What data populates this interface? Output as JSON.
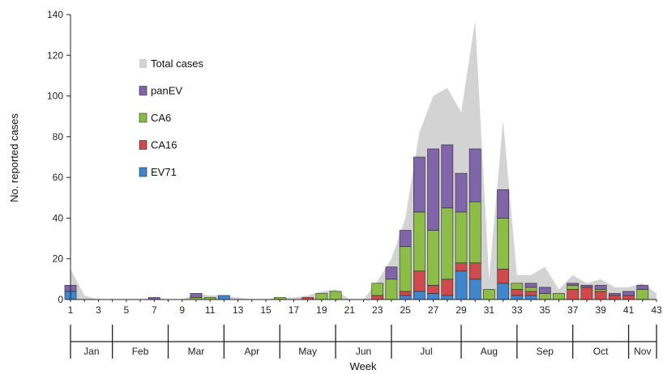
{
  "chart_data": {
    "type": "bar",
    "title": "",
    "xlabel": "Week",
    "ylabel": "No. reported cases",
    "ylim": [
      0,
      140
    ],
    "y_ticks": [
      0,
      20,
      40,
      60,
      80,
      100,
      120,
      140
    ],
    "xlim": [
      1,
      43
    ],
    "x_tick_labels": [
      "1",
      "3",
      "5",
      "7",
      "9",
      "11",
      "13",
      "15",
      "17",
      "19",
      "21",
      "23",
      "25",
      "27",
      "29",
      "31",
      "33",
      "35",
      "37",
      "39",
      "41",
      "43"
    ],
    "legend_placement": "upper-left",
    "legend": [
      "Total cases",
      "panEV",
      "CA6",
      "CA16",
      "EV71"
    ],
    "colors": {
      "total": "#d3d3d3",
      "panEV": "#8065a9",
      "CA6": "#8cbd47",
      "CA16": "#d04a4c",
      "EV71": "#3f86cc"
    },
    "months": [
      {
        "label": "Jan",
        "start": 1,
        "end": 4
      },
      {
        "label": "Feb",
        "start": 4,
        "end": 8
      },
      {
        "label": "Mar",
        "start": 8,
        "end": 12
      },
      {
        "label": "Apr",
        "start": 12,
        "end": 16
      },
      {
        "label": "May",
        "start": 16,
        "end": 20
      },
      {
        "label": "Jun",
        "start": 20,
        "end": 24
      },
      {
        "label": "Jul",
        "start": 24,
        "end": 29
      },
      {
        "label": "Aug",
        "start": 29,
        "end": 33
      },
      {
        "label": "Sep",
        "start": 33,
        "end": 37
      },
      {
        "label": "Oct",
        "start": 37,
        "end": 41
      },
      {
        "label": "Nov",
        "start": 41,
        "end": 43
      }
    ],
    "weeks": [
      1,
      2,
      3,
      4,
      5,
      6,
      7,
      8,
      9,
      10,
      11,
      12,
      13,
      14,
      15,
      16,
      17,
      18,
      19,
      20,
      21,
      22,
      23,
      24,
      25,
      26,
      27,
      28,
      29,
      30,
      31,
      32,
      33,
      34,
      35,
      36,
      37,
      38,
      39,
      40,
      41,
      42,
      43
    ],
    "series": [
      {
        "name": "EV71",
        "values": [
          4,
          0,
          0,
          0,
          0,
          0,
          0,
          0,
          0,
          0,
          0,
          2,
          0,
          0,
          0,
          0,
          0,
          0,
          0,
          0,
          0,
          0,
          0,
          0,
          2,
          4,
          3,
          2,
          14,
          10,
          0,
          8,
          2,
          2,
          0,
          0,
          0,
          0,
          0,
          0,
          0,
          0,
          0
        ]
      },
      {
        "name": "CA16",
        "values": [
          0,
          0,
          0,
          0,
          0,
          0,
          0,
          0,
          0,
          0,
          0,
          0,
          0,
          0,
          0,
          0,
          0,
          1,
          0,
          0,
          0,
          0,
          2,
          0,
          2,
          10,
          4,
          8,
          4,
          8,
          0,
          7,
          3,
          2,
          0,
          0,
          5,
          6,
          4,
          2,
          2,
          0,
          0
        ]
      },
      {
        "name": "CA6",
        "values": [
          0,
          0,
          0,
          0,
          0,
          0,
          0,
          0,
          0,
          1,
          1,
          0,
          0,
          0,
          0,
          1,
          0,
          0,
          3,
          4,
          0,
          0,
          6,
          10,
          22,
          29,
          27,
          35,
          25,
          30,
          5,
          25,
          3,
          2,
          3,
          3,
          2,
          0,
          1,
          0,
          0,
          5,
          0
        ]
      },
      {
        "name": "panEV",
        "values": [
          3,
          0,
          0,
          0,
          0,
          0,
          1,
          0,
          0,
          2,
          0,
          0,
          0,
          0,
          0,
          0,
          0,
          0,
          0,
          0,
          0,
          0,
          0,
          6,
          8,
          27,
          40,
          31,
          19,
          26,
          0,
          14,
          0,
          2,
          3,
          0,
          1,
          1,
          2,
          1,
          2,
          2,
          0
        ]
      },
      {
        "name": "Total cases",
        "values": [
          15,
          2,
          0,
          0,
          0,
          0,
          1,
          0,
          0,
          3,
          2,
          2,
          1,
          0,
          0,
          1,
          1,
          2,
          4,
          5,
          0,
          0,
          9,
          20,
          40,
          82,
          100,
          104,
          92,
          137,
          10,
          88,
          12,
          12,
          16,
          5,
          12,
          8,
          10,
          6,
          6,
          8,
          3
        ]
      }
    ]
  }
}
